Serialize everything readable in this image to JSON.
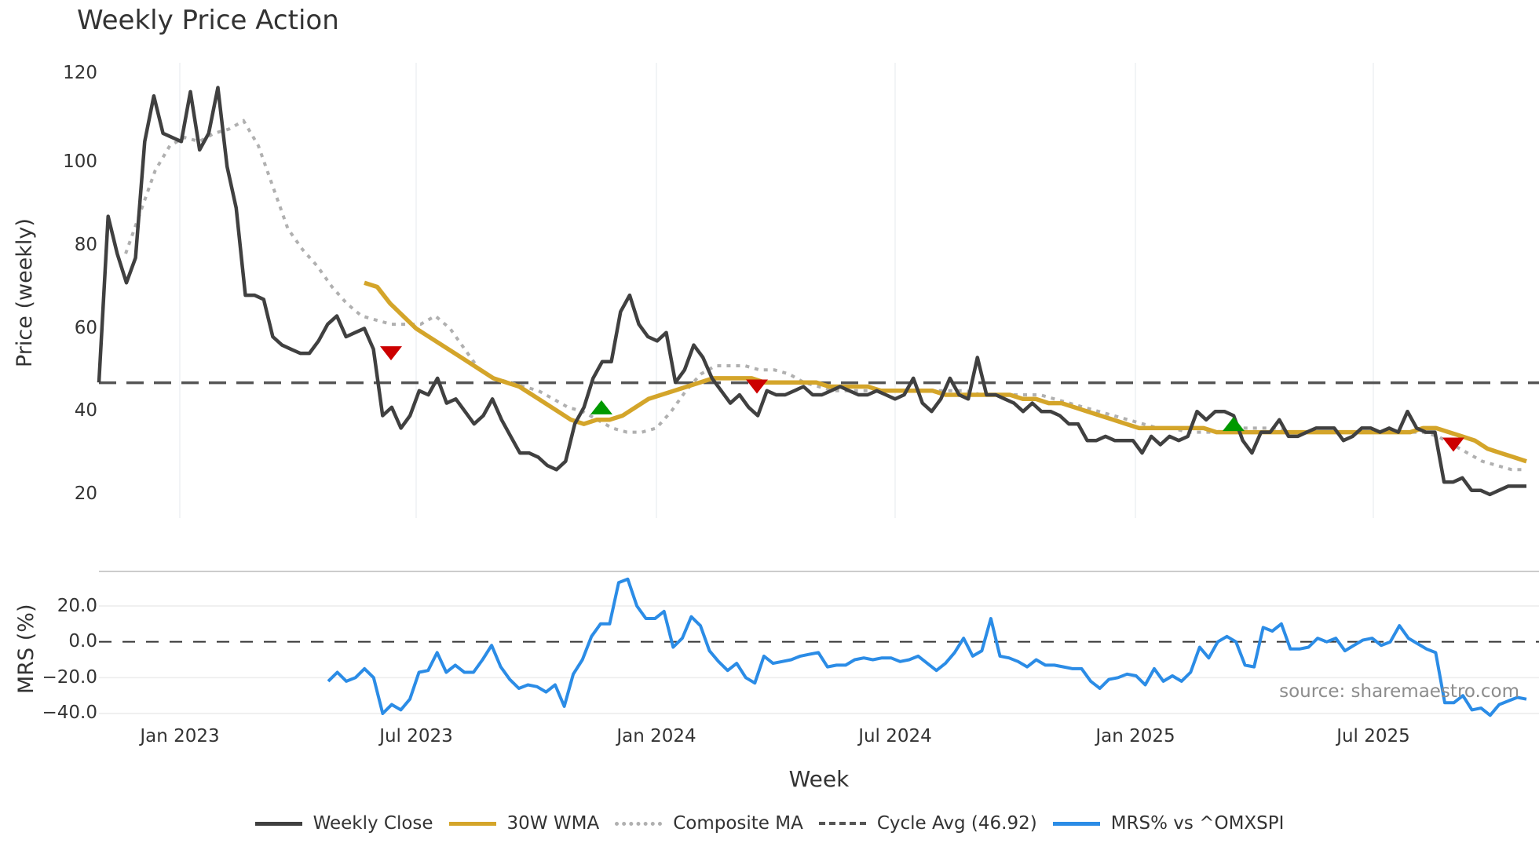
{
  "chart_data": {
    "type": "line",
    "title": "Weekly Price Action",
    "xlabel": "Week",
    "panels": [
      {
        "name": "price",
        "ylabel": "Price (weekly)",
        "yticks": [
          20,
          40,
          60,
          80,
          100,
          120
        ],
        "ylim": [
          14,
          124
        ],
        "reference_line": {
          "name": "Cycle Avg",
          "value": 46.92
        }
      },
      {
        "name": "mrs",
        "ylabel": "MRS (%)",
        "yticks": [
          "20.0",
          "0.0",
          "−20.0",
          "−40.0"
        ],
        "ylim": [
          -43,
          37
        ],
        "reference_line": {
          "name": "zero",
          "value": 0
        }
      }
    ],
    "xticks": [
      "Jan 2023",
      "Jul 2023",
      "Jan 2024",
      "Jul 2024",
      "Jan 2025",
      "Jul 2025"
    ],
    "series": [
      {
        "name": "Weekly Close",
        "color": "#404040",
        "values": [
          47,
          87,
          78,
          71,
          77,
          105,
          116,
          107,
          106,
          105,
          117,
          103,
          107,
          118,
          99,
          89,
          68,
          68,
          67,
          58,
          56,
          55,
          54,
          54,
          57,
          61,
          63,
          58,
          59,
          60,
          55,
          39,
          41,
          36,
          39,
          45,
          44,
          48,
          42,
          43,
          40,
          37,
          39,
          43,
          38,
          34,
          30,
          30,
          29,
          27,
          26,
          28,
          37,
          41,
          48,
          52,
          52,
          64,
          68,
          61,
          58,
          57,
          59,
          47,
          50,
          56,
          53,
          48,
          45,
          42,
          44,
          41,
          39,
          45,
          44,
          44,
          45,
          46,
          44,
          44,
          45,
          46,
          45,
          44,
          44,
          45,
          44,
          43,
          44,
          48,
          42,
          40,
          43,
          48,
          44,
          43,
          53,
          44,
          44,
          43,
          42,
          40,
          42,
          40,
          40,
          39,
          37,
          37,
          33,
          33,
          34,
          33,
          33,
          33,
          30,
          34,
          32,
          34,
          33,
          34,
          40,
          38,
          40,
          40,
          39,
          33,
          30,
          35,
          35,
          38,
          34,
          34,
          35,
          36,
          36,
          36,
          33,
          34,
          36,
          36,
          35,
          36,
          35,
          40,
          36,
          35,
          35,
          23,
          23,
          24,
          21,
          21,
          20,
          21,
          22,
          22,
          22
        ]
      },
      {
        "name": "30W WMA",
        "color": "#d4a52a",
        "values": [
          71,
          70,
          66,
          63,
          60,
          58,
          56,
          54,
          52,
          50,
          48,
          47,
          46,
          44,
          42,
          40,
          38,
          37,
          38,
          38,
          39,
          41,
          43,
          44,
          45,
          46,
          47,
          48,
          48,
          48,
          48,
          47,
          47,
          47,
          47,
          47,
          46,
          46,
          46,
          46,
          45,
          45,
          45,
          45,
          45,
          44,
          44,
          44,
          44,
          44,
          44,
          43,
          43,
          42,
          42,
          41,
          40,
          39,
          38,
          37,
          36,
          36,
          36,
          36,
          36,
          36,
          35,
          35,
          35,
          35,
          35,
          35,
          35,
          35,
          35,
          35,
          35,
          35,
          35,
          35,
          35,
          35,
          36,
          36,
          35,
          34,
          33,
          31,
          30,
          29,
          28
        ]
      },
      {
        "name": "Composite MA",
        "color": "#b0b0b0",
        "values": [
          78,
          88,
          98,
          104,
          106,
          105,
          107,
          108,
          110,
          104,
          94,
          84,
          79,
          75,
          70,
          66,
          63,
          62,
          61,
          61,
          61,
          63,
          60,
          55,
          50,
          48,
          47,
          46,
          45,
          43,
          41,
          40,
          38,
          36,
          35,
          35,
          36,
          40,
          45,
          49,
          51,
          51,
          51,
          50,
          50,
          49,
          47,
          46,
          45,
          45,
          45,
          45,
          45,
          45,
          45,
          45,
          45,
          45,
          44,
          44,
          44,
          44,
          44,
          43,
          42,
          41,
          40,
          39,
          38,
          37,
          36,
          36,
          35,
          35,
          35,
          36,
          36,
          36,
          36,
          35,
          35,
          35,
          35,
          35,
          35,
          35,
          35,
          35,
          35,
          34,
          32,
          30,
          28,
          27,
          26,
          26
        ]
      },
      {
        "name": "MRS% vs ^OMXSPI",
        "color": "#2b8ce6",
        "values": [
          -22,
          -17,
          -22,
          -20,
          -15,
          -20,
          -40,
          -35,
          -38,
          -32,
          -17,
          -16,
          -6,
          -17,
          -13,
          -17,
          -17,
          -10,
          -2,
          -14,
          -21,
          -26,
          -24,
          -25,
          -28,
          -24,
          -36,
          -18,
          -10,
          3,
          10,
          10,
          33,
          35,
          20,
          13,
          13,
          17,
          -3,
          2,
          14,
          9,
          -5,
          -11,
          -16,
          -12,
          -20,
          -23,
          -8,
          -12,
          -11,
          -10,
          -8,
          -7,
          -6,
          -14,
          -13,
          -13,
          -10,
          -9,
          -10,
          -9,
          -9,
          -11,
          -10,
          -8,
          -12,
          -16,
          -12,
          -6,
          2,
          -8,
          -5,
          13,
          -8,
          -9,
          -11,
          -14,
          -10,
          -13,
          -13,
          -14,
          -15,
          -15,
          -22,
          -26,
          -21,
          -20,
          -18,
          -19,
          -24,
          -15,
          -22,
          -19,
          -22,
          -17,
          -3,
          -9,
          0,
          3,
          0,
          -13,
          -14,
          8,
          6,
          10,
          -4,
          -4,
          -3,
          2,
          0,
          2,
          -5,
          -2,
          1,
          2,
          -2,
          0,
          9,
          2,
          -1,
          -4,
          -6,
          -34,
          -34,
          -30,
          -38,
          -37,
          -41,
          -35,
          -33,
          -31,
          -32
        ]
      }
    ],
    "markers": [
      {
        "type": "sell",
        "shape": "triangle-down",
        "color": "#cc0000",
        "x_label": "~Jun 2023",
        "value": 54
      },
      {
        "type": "buy",
        "shape": "triangle-up",
        "color": "#009900",
        "x_label": "~Nov 2023",
        "value": 41
      },
      {
        "type": "sell",
        "shape": "triangle-down",
        "color": "#cc0000",
        "x_label": "~Apr 2024",
        "value": 46
      },
      {
        "type": "buy",
        "shape": "triangle-up",
        "color": "#009900",
        "x_label": "~Apr 2025",
        "value": 37
      },
      {
        "type": "sell",
        "shape": "triangle-down",
        "color": "#cc0000",
        "x_label": "~Oct 2025",
        "value": 32
      }
    ],
    "legend_position": "bottom-center"
  },
  "labels": {
    "title": "Weekly Price Action",
    "price_ylabel": "Price (weekly)",
    "mrs_ylabel": "MRS (%)",
    "xlabel": "Week",
    "source": "source: sharemaestro.com",
    "price_ticks": [
      "120",
      "100",
      "80",
      "60",
      "40",
      "20"
    ],
    "mrs_ticks": [
      "20.0",
      "0.0",
      "−20.0",
      "−40.0"
    ],
    "x_ticks": [
      "Jan 2023",
      "Jul 2023",
      "Jan 2024",
      "Jul 2024",
      "Jan 2025",
      "Jul 2025"
    ]
  },
  "legend": [
    {
      "label": "Weekly Close",
      "color": "#404040",
      "style": "solid"
    },
    {
      "label": "30W WMA",
      "color": "#d4a52a",
      "style": "solid"
    },
    {
      "label": "Composite MA",
      "color": "#b0b0b0",
      "style": "dotted"
    },
    {
      "label": "Cycle Avg (46.92)",
      "color": "#555555",
      "style": "dashed"
    },
    {
      "label": "MRS% vs ^OMXSPI",
      "color": "#2b8ce6",
      "style": "solid"
    }
  ]
}
